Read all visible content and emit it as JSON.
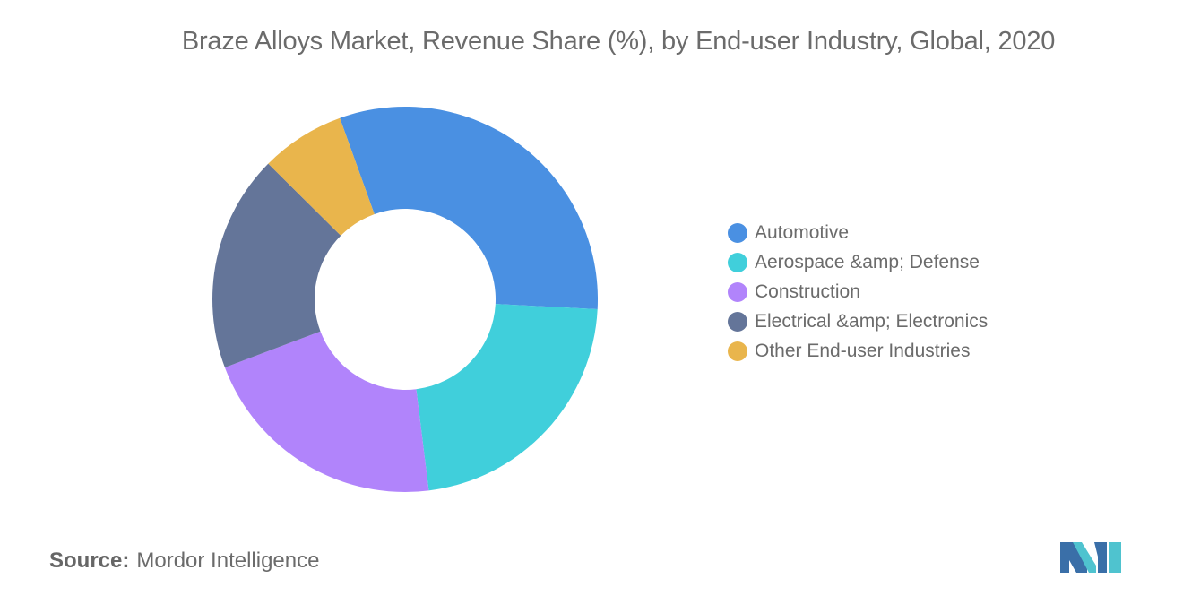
{
  "title": "Braze Alloys Market, Revenue Share (%), by End-user Industry, Global, 2020",
  "chart_data": {
    "type": "pie",
    "variant": "donut",
    "title": "Braze Alloys Market, Revenue Share (%), by End-user Industry, Global, 2020",
    "legend_position": "right",
    "series": [
      {
        "name": "Automotive",
        "value": 31,
        "color": "#4a90e2"
      },
      {
        "name": "Aerospace &amp; Defense",
        "value": 22,
        "color": "#40cfdb"
      },
      {
        "name": "Construction",
        "value": 21,
        "color": "#b184fb"
      },
      {
        "name": "Electrical &amp; Electronics",
        "value": 18,
        "color": "#647599"
      },
      {
        "name": "Other End-user Industries",
        "value": 7,
        "color": "#e9b54c"
      }
    ]
  },
  "source": {
    "label": "Source:",
    "value": "Mordor Intelligence"
  },
  "logo": {
    "icon": "mordor-intelligence-logo",
    "colors": [
      "#3a6fa8",
      "#4fc3cf"
    ]
  }
}
